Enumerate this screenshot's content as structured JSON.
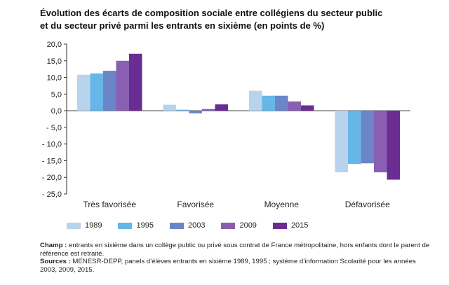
{
  "title_line1": "Évolution des écarts de composition sociale entre collégiens du secteur public",
  "title_line2": "et du secteur privé parmi les entrants en sixième (en points de %)",
  "chart_data": {
    "type": "bar",
    "categories": [
      "Très favorisée",
      "Favorisée",
      "Moyenne",
      "Défavorisée"
    ],
    "series": [
      {
        "name": "1989",
        "color": "#b8d3ec",
        "values": [
          10.8,
          1.8,
          6.0,
          -18.5
        ]
      },
      {
        "name": "1995",
        "color": "#66b6e8",
        "values": [
          11.2,
          0.3,
          4.5,
          -16.0
        ]
      },
      {
        "name": "2003",
        "color": "#6a86c8",
        "values": [
          12.0,
          -0.8,
          4.5,
          -15.8
        ]
      },
      {
        "name": "2009",
        "color": "#8a5fb3",
        "values": [
          15.0,
          0.5,
          2.8,
          -18.5
        ]
      },
      {
        "name": "2015",
        "color": "#6a2d91",
        "values": [
          17.1,
          1.9,
          1.6,
          -20.7
        ]
      }
    ],
    "ylim": [
      -25,
      20
    ],
    "yticks": [
      "20,0",
      "15,0",
      "10,0",
      "5,0",
      "0,0",
      "- 5,0",
      "- 10,0",
      "- 15,0",
      "- 20,0",
      "- 25,0"
    ],
    "ytick_values": [
      20,
      15,
      10,
      5,
      0,
      -5,
      -10,
      -15,
      -20,
      -25
    ],
    "grid": false,
    "legend_position": "bottom"
  },
  "notes": {
    "champ_label": "Champ :",
    "champ_text": " entrants en sixième dans un collège public ou privé sous contrat de France métropolitaine, hors enfants dont le parent de référence est retraité.",
    "sources_label": "Sources :",
    "sources_text": " MENESR-DEPP, panels d’élèves entrants en sixième 1989, 1995 ; système d’information Scolarité pour les années 2003, 2009, 2015."
  }
}
